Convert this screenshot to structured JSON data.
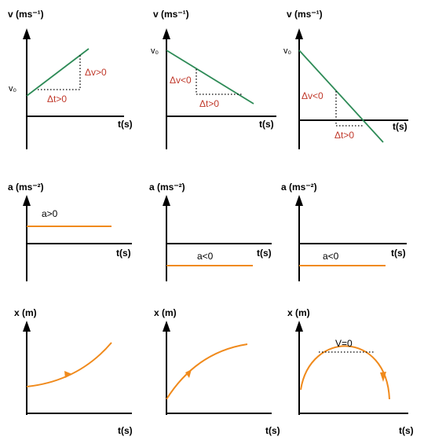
{
  "velocity_row": {
    "y_axis_label": "v (ms⁻¹)",
    "x_axis_label": "t(s)",
    "graphs": [
      {
        "v0_label": "v₀",
        "dv_label": "Δv>0",
        "dt_label": "Δt>0"
      },
      {
        "v0_label": "v₀",
        "dv_label": "Δv<0",
        "dt_label": "Δt>0"
      },
      {
        "v0_label": "v₀",
        "dv_label": "Δv<0",
        "dt_label": "Δt>0"
      }
    ]
  },
  "acceleration_row": {
    "y_axis_label": "a (ms⁻²)",
    "x_axis_label": "t(s)",
    "graphs": [
      {
        "a_label": "a>0"
      },
      {
        "a_label": "a<0"
      },
      {
        "a_label": "a<0"
      }
    ]
  },
  "position_row": {
    "y_axis_label": "x (m)",
    "x_axis_label": "t(s)",
    "graphs": [
      {},
      {},
      {
        "peak_label": "V=0"
      }
    ]
  },
  "colors": {
    "velocity_line": "#2e8b57",
    "curve": "#f08a1c",
    "delta_text": "#c0392b",
    "axis": "#000000"
  }
}
